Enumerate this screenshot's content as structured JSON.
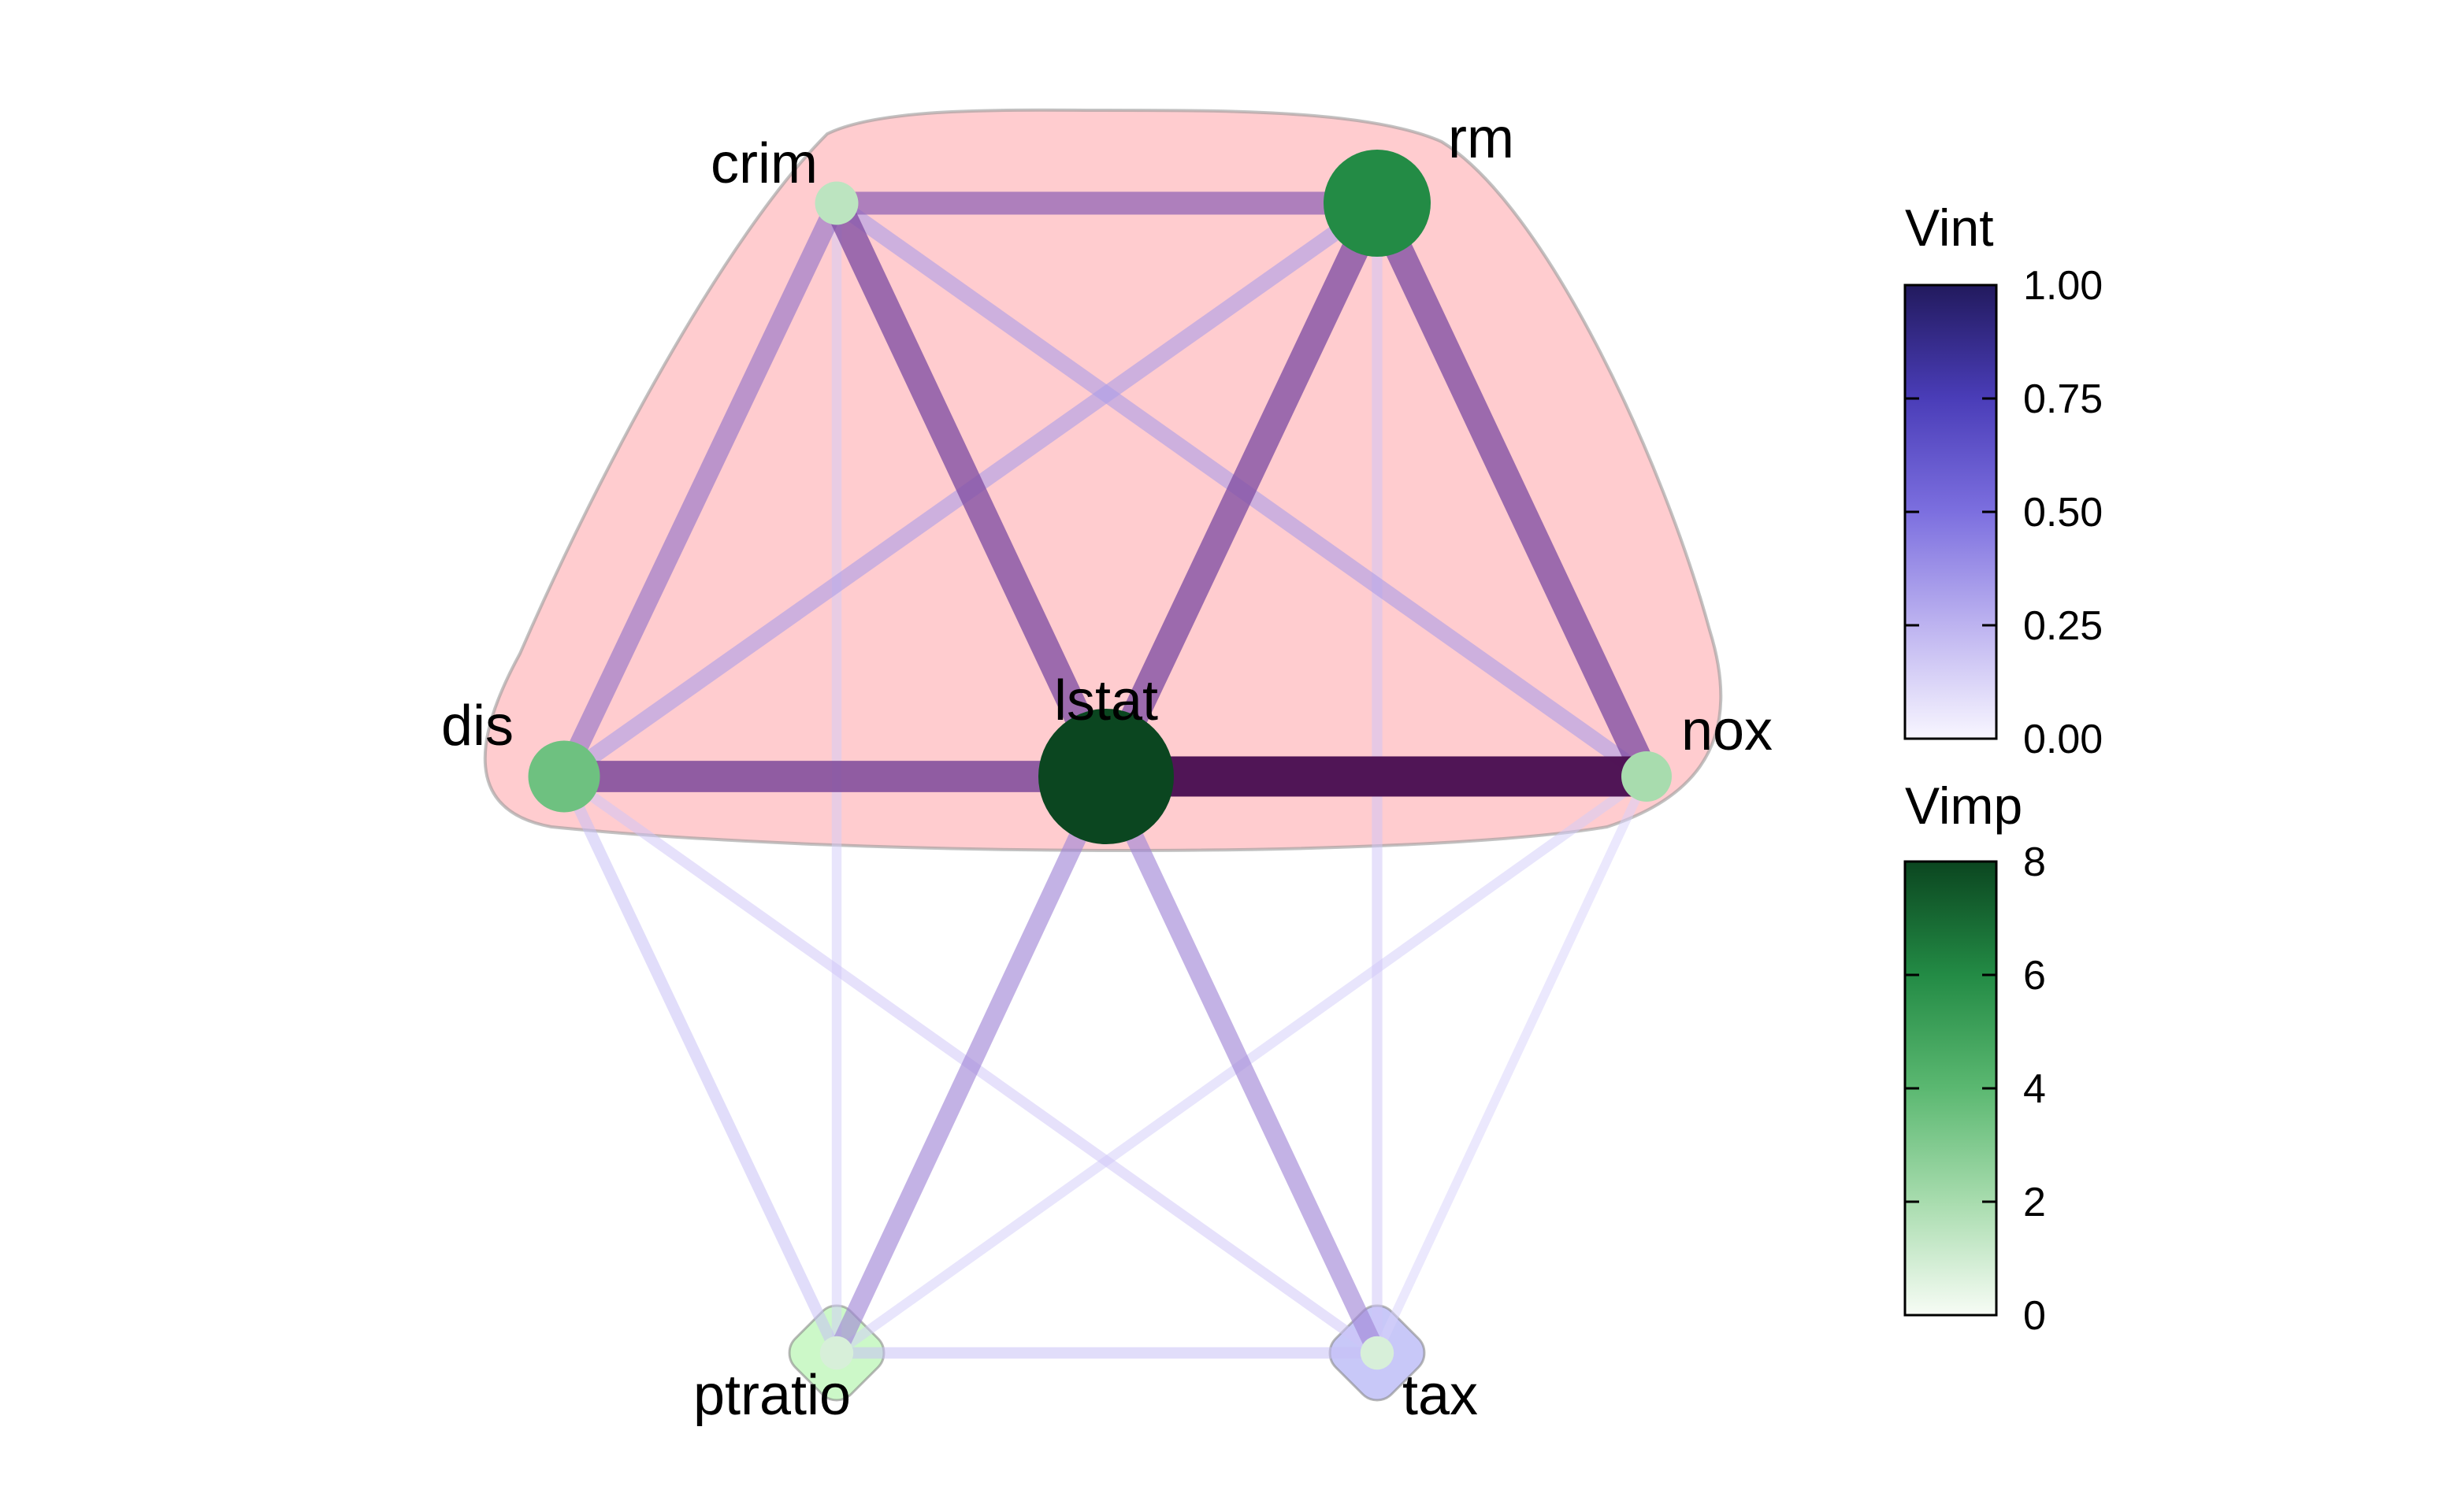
{
  "chart_data": {
    "type": "network",
    "nodes": [
      {
        "id": "crim",
        "label": "crim",
        "vimp": 1.5,
        "group": "cluster-1"
      },
      {
        "id": "rm",
        "label": "rm",
        "vimp": 6.0,
        "group": "cluster-1"
      },
      {
        "id": "dis",
        "label": "dis",
        "vimp": 3.5,
        "group": "cluster-1"
      },
      {
        "id": "lstat",
        "label": "lstat",
        "vimp": 8.0,
        "group": "cluster-1"
      },
      {
        "id": "nox",
        "label": "nox",
        "vimp": 2.0,
        "group": "cluster-1"
      },
      {
        "id": "ptratio",
        "label": "ptratio",
        "vimp": 0.8,
        "group": "cluster-2"
      },
      {
        "id": "tax",
        "label": "tax",
        "vimp": 0.8,
        "group": "cluster-3"
      }
    ],
    "edges": [
      {
        "from": "lstat",
        "to": "nox",
        "vint": 0.98
      },
      {
        "from": "dis",
        "to": "lstat",
        "vint": 0.72
      },
      {
        "from": "crim",
        "to": "lstat",
        "vint": 0.62
      },
      {
        "from": "rm",
        "to": "lstat",
        "vint": 0.62
      },
      {
        "from": "rm",
        "to": "nox",
        "vint": 0.62
      },
      {
        "from": "crim",
        "to": "rm",
        "vint": 0.48
      },
      {
        "from": "crim",
        "to": "dis",
        "vint": 0.4
      },
      {
        "from": "lstat",
        "to": "tax",
        "vint": 0.35
      },
      {
        "from": "lstat",
        "to": "ptratio",
        "vint": 0.35
      },
      {
        "from": "crim",
        "to": "nox",
        "vint": 0.28
      },
      {
        "from": "dis",
        "to": "rm",
        "vint": 0.28
      },
      {
        "from": "dis",
        "to": "ptratio",
        "vint": 0.15
      },
      {
        "from": "dis",
        "to": "tax",
        "vint": 0.12
      },
      {
        "from": "ptratio",
        "to": "tax",
        "vint": 0.15
      },
      {
        "from": "crim",
        "to": "ptratio",
        "vint": 0.1
      },
      {
        "from": "rm",
        "to": "tax",
        "vint": 0.12
      },
      {
        "from": "nox",
        "to": "ptratio",
        "vint": 0.1
      },
      {
        "from": "nox",
        "to": "tax",
        "vint": 0.08
      }
    ],
    "groups": [
      {
        "id": "cluster-1",
        "color": "#ffaaaf"
      },
      {
        "id": "cluster-2",
        "color": "#b6f5b0"
      },
      {
        "id": "cluster-3",
        "color": "#b0b0f5"
      }
    ],
    "legends": [
      {
        "title": "Vint",
        "range": [
          0,
          1
        ],
        "ticks": [
          "0.00",
          "0.25",
          "0.50",
          "0.75",
          "1.00"
        ],
        "colors": [
          "#f8f6ff",
          "#bdb3f0",
          "#7c6fdf",
          "#4a3db8",
          "#221a5e"
        ]
      },
      {
        "title": "Vimp",
        "range": [
          0,
          8
        ],
        "ticks": [
          "0",
          "2",
          "4",
          "6",
          "8"
        ],
        "colors": [
          "#f7fcf5",
          "#a8dcae",
          "#5bb871",
          "#238b45",
          "#0b4620"
        ]
      }
    ],
    "edge_color_scale": [
      "#e8e4ff",
      "#b1a6f0",
      "#8a5bb0",
      "#7a4597",
      "#4a0e4e"
    ]
  }
}
